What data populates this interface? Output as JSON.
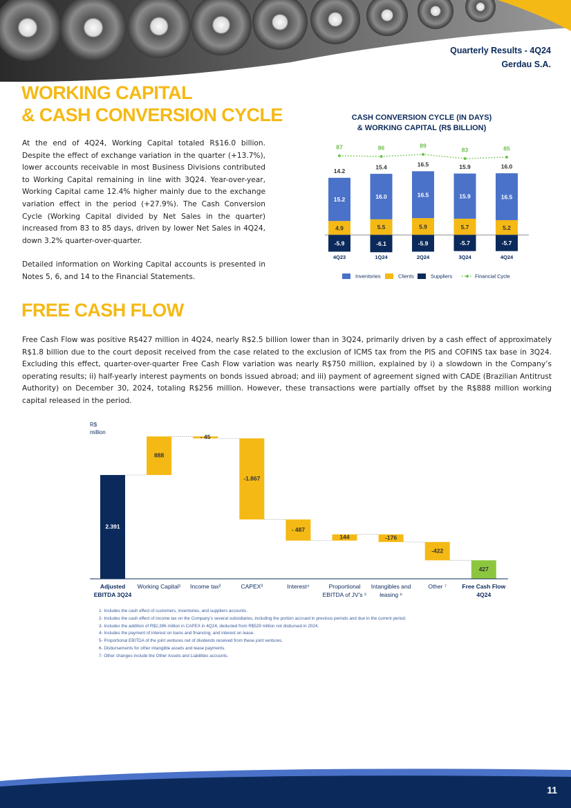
{
  "header": {
    "report": "Quarterly Results - 4Q24",
    "company": "Gerdau S.A."
  },
  "sections": [
    {
      "title_lines": [
        "WORKING CAPITAL",
        "& CASH CONVERSION CYCLE"
      ],
      "paragraphs": [
        "At the end of 4Q24, Working Capital totaled R$16.0 billion. Despite the effect of exchange variation in the quarter (+13.7%), lower accounts receivable in most Business Divisions contributed to Working Capital remaining in line with 3Q24. Year-over-year, Working Capital came 12.4% higher mainly due to the exchange variation effect in the period (+27.9%). The Cash Conversion Cycle (Working Capital divided by Net Sales in the quarter) increased from 83 to 85 days, driven by lower Net Sales in 4Q24, down 3.2% quarter-over-quarter.",
        "Detailed information on Working Capital accounts is presented in Notes 5, 6, and 14 to the Financial Statements."
      ]
    },
    {
      "title_lines": [
        "FREE CASH FLOW"
      ],
      "paragraphs": [
        "Free Cash Flow was positive R$427 million in 4Q24, nearly R$2.5 billion lower than in 3Q24, primarily driven by a cash effect of approximately R$1.8 billion due to the court deposit received from the case related to the exclusion of ICMS tax from the PIS and COFINS tax base in 3Q24. Excluding this effect, quarter-over-quarter Free Cash Flow variation was nearly R$750 million, explained by i) a slowdown in the Company’s operating results; ii) half-yearly interest payments on bonds issued abroad; and iii) payment of agreement signed with CADE (Brazilian Antitrust Authority) on December 30, 2024, totaling R$256 million. However, these transactions were partially offset by the R$888 million working capital released in the period."
      ]
    }
  ],
  "chart_data": [
    {
      "type": "bar",
      "stacked": true,
      "title": "CASH CONVERSION CYCLE (IN DAYS)",
      "subtitle": "& WORKING CAPITAL (R$ BILLION)",
      "categories": [
        "4Q23",
        "1Q24",
        "2Q24",
        "3Q24",
        "4Q24"
      ],
      "series": [
        {
          "name": "Inventories",
          "color": "#4a72c8",
          "values": [
            15.2,
            16.0,
            16.5,
            15.9,
            16.5
          ],
          "value_labels": [
            "15.2",
            "16.0",
            "16.5",
            "15.9",
            "16.5"
          ]
        },
        {
          "name": "Clients",
          "color": "#f5b915",
          "values": [
            4.9,
            5.5,
            5.9,
            5.7,
            5.2
          ]
        },
        {
          "name": "Suppliers",
          "color": "#0b2a5b",
          "values": [
            -5.9,
            -6.1,
            -5.9,
            -5.7,
            -5.7
          ]
        },
        {
          "name": "Financial Cycle",
          "color": "#6cc24a",
          "type": "line",
          "axis": "y2",
          "values": [
            87,
            86,
            89,
            83,
            85
          ]
        }
      ],
      "totals": {
        "values": [
          14.2,
          15.4,
          16.5,
          15.9,
          16.0
        ],
        "value_labels": [
          "14.2",
          "15.4",
          "16.5",
          "15.9",
          "16.0"
        ]
      },
      "ylim": [
        -7,
        22
      ],
      "y2lim": [
        0,
        100
      ],
      "legend": "bottom"
    },
    {
      "type": "waterfall",
      "axis_label_lines": [
        "R$",
        "million"
      ],
      "categories": [
        "Adjusted EBITDA 3Q24",
        "Working Capital¹",
        "Income tax²",
        "CAPEX³",
        "Interest⁴",
        "Proportional EBITDA of JV's ⁵",
        "Intangibles and leasing ⁶",
        "Other ⁷",
        "Free Cash Flow 4Q24"
      ],
      "values": [
        2391,
        888,
        -45,
        -1867,
        -487,
        144,
        -176,
        -422,
        427
      ],
      "value_labels": [
        "2.391",
        "888",
        "- 45",
        "-1.867",
        "- 487",
        "144",
        "-176",
        "-422",
        "427"
      ],
      "colors": [
        "#0b2a5b",
        "#f5b915",
        "#f5b915",
        "#f5b915",
        "#f5b915",
        "#f5b915",
        "#f5b915",
        "#f5b915",
        "#8cc63f"
      ],
      "ylim": [
        0,
        3500
      ]
    }
  ],
  "footnotes": [
    "1- Includes the cash effect of customers, inventories, and suppliers accounts.",
    "2- Includes the cash effect of income tax on the Company’s several subsidiaries, including the portion accrued in previous periods and due in the current period.",
    "3- Includes the addition of R$2,396 million in CAPEX in 4Q24, deducted from R$529 million not disbursed in 2024.",
    "4- Includes the payment of interest on loans and financing, and interest on lease.",
    "5- Proportional EBITDA of the joint ventures net of dividends received from these joint ventures.",
    "6- Disbursements for other intangible assets and lease payments.",
    "7- Other changes include the Other Assets and Liabilities accounts."
  ],
  "page_number": "11"
}
